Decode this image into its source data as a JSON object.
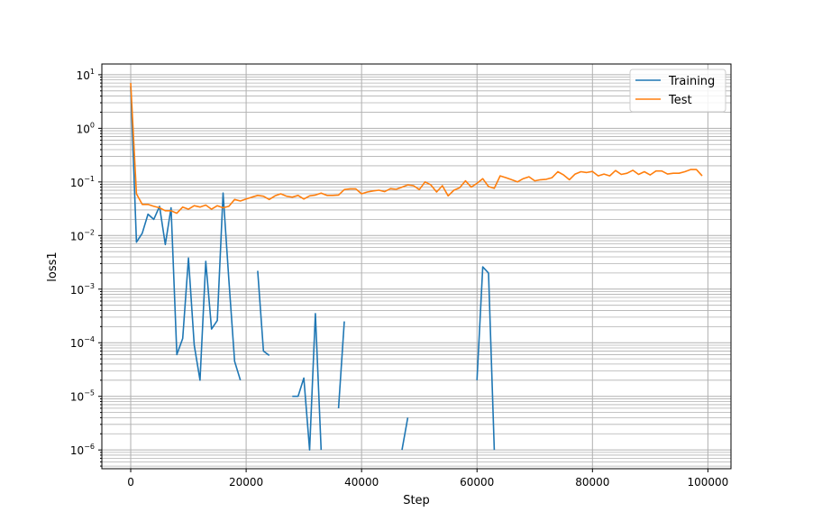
{
  "chart_data": {
    "type": "line",
    "title": "",
    "xlabel": "Step",
    "ylabel": "loss1",
    "xscale": "linear",
    "yscale": "log",
    "xlim": [
      -5000,
      104000
    ],
    "ylim_log10": [
      -6.35,
      1.2
    ],
    "xticks": [
      0,
      20000,
      40000,
      60000,
      80000,
      100000
    ],
    "yticks": [
      {
        "exp": 1,
        "label": "10",
        "sup": "1"
      },
      {
        "exp": 0,
        "label": "10",
        "sup": "0"
      },
      {
        "exp": -1,
        "label": "10",
        "sup": "−1"
      },
      {
        "exp": -2,
        "label": "10",
        "sup": "−2"
      },
      {
        "exp": -3,
        "label": "10",
        "sup": "−3"
      },
      {
        "exp": -4,
        "label": "10",
        "sup": "−4"
      },
      {
        "exp": -5,
        "label": "10",
        "sup": "−5"
      },
      {
        "exp": -6,
        "label": "10",
        "sup": "−6"
      }
    ],
    "grid": true,
    "grid_minor": true,
    "legend_position": "top-right",
    "series": [
      {
        "name": "Training",
        "color": "#1f77b4",
        "segments": [
          {
            "x": [
              0,
              1000,
              2000,
              3000,
              4000,
              5000,
              6000,
              7000,
              8000,
              9000,
              10000,
              11000,
              12000,
              13000,
              14000,
              15000,
              16000,
              17000,
              18000,
              19000
            ],
            "y": [
              6,
              0.0075,
              0.011,
              0.025,
              0.02,
              0.035,
              0.0068,
              0.033,
              6e-05,
              0.00012,
              0.0038,
              9e-05,
              2e-05,
              0.0033,
              0.00018,
              0.00026,
              0.062,
              0.0015,
              4.5e-05,
              2e-05
            ]
          },
          {
            "x": [
              22000,
              23000,
              24000
            ],
            "y": [
              0.0022,
              7e-05,
              5.8e-05
            ]
          },
          {
            "x": [
              28000,
              29000,
              30000,
              31000,
              32000,
              33000
            ],
            "y": [
              1e-05,
              1e-05,
              2.2e-05,
              1e-06,
              0.00035,
              1e-06
            ]
          },
          {
            "x": [
              36000,
              37000
            ],
            "y": [
              6e-06,
              0.00025
            ]
          },
          {
            "x": [
              47000,
              48000
            ],
            "y": [
              1e-06,
              4e-06
            ]
          },
          {
            "x": [
              60000,
              61000,
              62000,
              63000
            ],
            "y": [
              2e-05,
              0.0026,
              0.002,
              1e-06
            ]
          }
        ]
      },
      {
        "name": "Test",
        "color": "#ff7f0e",
        "segments": [
          {
            "x": [
              0,
              1000,
              2000,
              3000,
              4000,
              5000,
              6000,
              7000,
              8000,
              9000,
              10000,
              11000,
              12000,
              13000,
              14000,
              15000,
              16000,
              17000,
              18000,
              19000,
              20000,
              21000,
              22000,
              23000,
              24000,
              25000,
              26000,
              27000,
              28000,
              29000,
              30000,
              31000,
              32000,
              33000,
              34000,
              35000,
              36000,
              37000,
              38000,
              39000,
              40000,
              41000,
              42000,
              43000,
              44000,
              45000,
              46000,
              47000,
              48000,
              49000,
              50000,
              51000,
              52000,
              53000,
              54000,
              55000,
              56000,
              57000,
              58000,
              59000,
              60000,
              61000,
              62000,
              63000,
              64000,
              65000,
              66000,
              67000,
              68000,
              69000,
              70000,
              71000,
              72000,
              73000,
              74000,
              75000,
              76000,
              77000,
              78000,
              79000,
              80000,
              81000,
              82000,
              83000,
              84000,
              85000,
              86000,
              87000,
              88000,
              89000,
              90000,
              91000,
              92000,
              93000,
              94000,
              95000,
              96000,
              97000,
              98000,
              99000
            ],
            "y": [
              7,
              0.06,
              0.038,
              0.038,
              0.035,
              0.033,
              0.029,
              0.029,
              0.026,
              0.034,
              0.031,
              0.036,
              0.034,
              0.037,
              0.031,
              0.036,
              0.033,
              0.035,
              0.047,
              0.044,
              0.048,
              0.052,
              0.056,
              0.054,
              0.047,
              0.055,
              0.06,
              0.054,
              0.052,
              0.056,
              0.048,
              0.055,
              0.057,
              0.062,
              0.056,
              0.056,
              0.057,
              0.072,
              0.074,
              0.074,
              0.06,
              0.065,
              0.068,
              0.07,
              0.066,
              0.075,
              0.073,
              0.08,
              0.088,
              0.085,
              0.072,
              0.1,
              0.088,
              0.065,
              0.085,
              0.055,
              0.07,
              0.078,
              0.105,
              0.08,
              0.094,
              0.115,
              0.082,
              0.076,
              0.13,
              0.12,
              0.11,
              0.1,
              0.115,
              0.125,
              0.105,
              0.11,
              0.112,
              0.12,
              0.155,
              0.135,
              0.11,
              0.14,
              0.155,
              0.15,
              0.157,
              0.13,
              0.14,
              0.13,
              0.163,
              0.138,
              0.145,
              0.165,
              0.138,
              0.155,
              0.135,
              0.16,
              0.16,
              0.14,
              0.145,
              0.145,
              0.155,
              0.17,
              0.17,
              0.13
            ]
          }
        ]
      }
    ]
  }
}
